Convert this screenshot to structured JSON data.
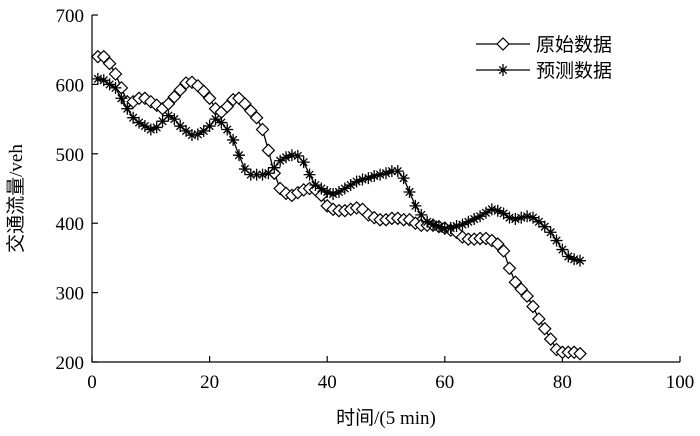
{
  "chart_data": {
    "type": "line",
    "xlabel": "时间/(5 min)",
    "ylabel": "交通流量/veh",
    "xlim": [
      0,
      100
    ],
    "ylim": [
      200,
      700
    ],
    "xticks": [
      0,
      20,
      40,
      60,
      80,
      100
    ],
    "yticks": [
      200,
      300,
      400,
      500,
      600,
      700
    ],
    "grid": false,
    "legend_position": "top-right",
    "series": [
      {
        "name": "原始数据",
        "marker": "diamond",
        "color": "#000000",
        "x": [
          1,
          2,
          3,
          4,
          5,
          6,
          7,
          8,
          9,
          10,
          11,
          12,
          13,
          14,
          15,
          16,
          17,
          18,
          19,
          20,
          21,
          22,
          23,
          24,
          25,
          26,
          27,
          28,
          29,
          30,
          31,
          32,
          33,
          34,
          35,
          36,
          37,
          38,
          39,
          40,
          41,
          42,
          43,
          44,
          45,
          46,
          47,
          48,
          49,
          50,
          51,
          52,
          53,
          54,
          55,
          56,
          57,
          58,
          59,
          60,
          61,
          62,
          63,
          64,
          65,
          66,
          67,
          68,
          69,
          70,
          71,
          72,
          73,
          74,
          75,
          76,
          77,
          78,
          79,
          80,
          81,
          82,
          83
        ],
        "values": [
          640,
          640,
          630,
          615,
          595,
          575,
          575,
          580,
          580,
          575,
          570,
          565,
          572,
          582,
          592,
          602,
          603,
          598,
          590,
          580,
          565,
          560,
          568,
          578,
          580,
          572,
          562,
          552,
          535,
          505,
          472,
          450,
          443,
          440,
          444,
          448,
          450,
          448,
          440,
          425,
          420,
          418,
          418,
          420,
          422,
          420,
          412,
          408,
          405,
          405,
          407,
          407,
          405,
          405,
          400,
          397,
          397,
          397,
          395,
          393,
          390,
          387,
          380,
          377,
          377,
          378,
          378,
          375,
          370,
          360,
          335,
          315,
          305,
          295,
          280,
          262,
          248,
          233,
          218,
          214,
          214,
          214,
          212
        ]
      },
      {
        "name": "预测数据",
        "marker": "star",
        "color": "#000000",
        "x": [
          1,
          2,
          3,
          4,
          5,
          6,
          7,
          8,
          9,
          10,
          11,
          12,
          13,
          14,
          15,
          16,
          17,
          18,
          19,
          20,
          21,
          22,
          23,
          24,
          25,
          26,
          27,
          28,
          29,
          30,
          31,
          32,
          33,
          34,
          35,
          36,
          37,
          38,
          39,
          40,
          41,
          42,
          43,
          44,
          45,
          46,
          47,
          48,
          49,
          50,
          51,
          52,
          53,
          54,
          55,
          56,
          57,
          58,
          59,
          60,
          61,
          62,
          63,
          64,
          65,
          66,
          67,
          68,
          69,
          70,
          71,
          72,
          73,
          74,
          75,
          76,
          77,
          78,
          79,
          80,
          81,
          82,
          83
        ],
        "values": [
          608,
          606,
          600,
          595,
          580,
          565,
          552,
          545,
          540,
          535,
          538,
          547,
          555,
          550,
          540,
          533,
          527,
          528,
          533,
          540,
          550,
          545,
          535,
          520,
          498,
          478,
          470,
          470,
          470,
          472,
          480,
          490,
          495,
          498,
          497,
          488,
          470,
          455,
          450,
          445,
          442,
          445,
          450,
          455,
          460,
          463,
          465,
          468,
          470,
          472,
          475,
          475,
          465,
          445,
          425,
          412,
          402,
          398,
          395,
          392,
          393,
          396,
          398,
          402,
          406,
          410,
          415,
          420,
          418,
          414,
          408,
          406,
          408,
          410,
          408,
          402,
          395,
          387,
          375,
          362,
          352,
          348,
          346
        ]
      }
    ]
  }
}
